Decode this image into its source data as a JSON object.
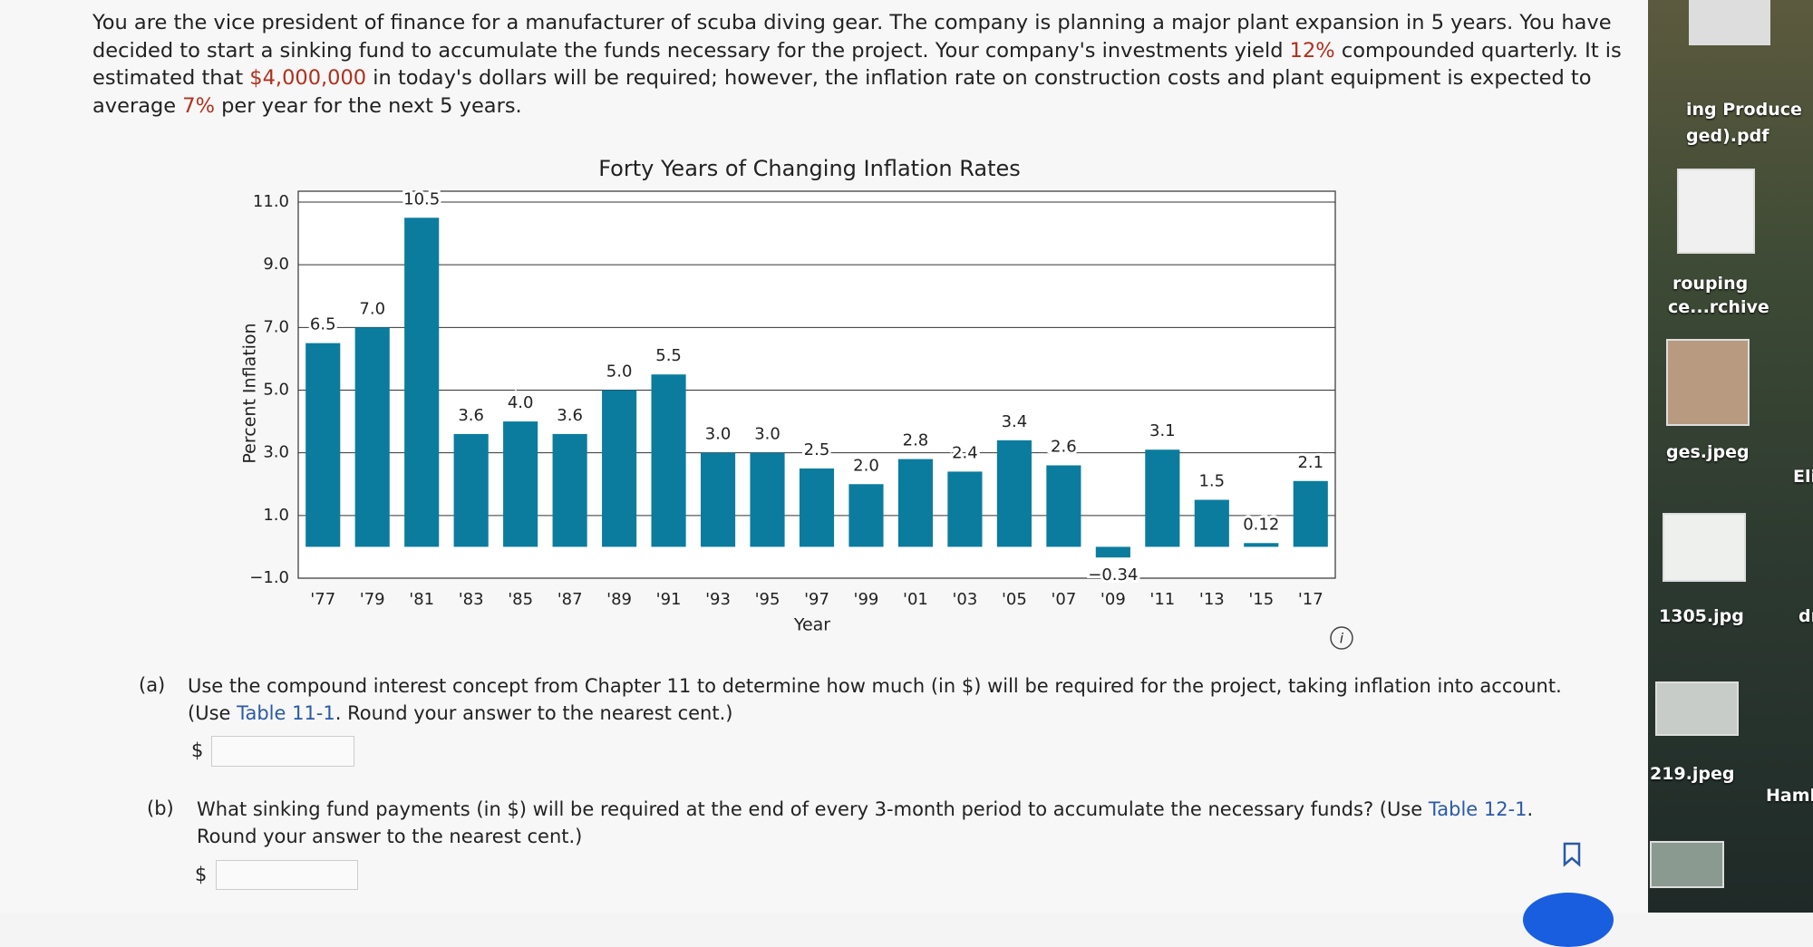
{
  "problem": {
    "intro": [
      "You are the vice president of finance for a manufacturer of scuba diving gear. The company is planning a major plant expansion in 5 years. You have",
      "decided to start a sinking fund to accumulate the funds necessary for the project. Your company's investments yield ",
      "12%",
      " compounded quarterly. It is",
      "estimated that ",
      "$4,000,000",
      " in today's dollars will be required; however, the inflation rate on construction costs and plant equipment is expected to",
      "average ",
      "7%",
      " per year for the next 5 years."
    ]
  },
  "chart_data": {
    "type": "bar",
    "title": "Forty Years of Changing Inflation Rates",
    "ylabel": "Percent Inflation",
    "xlabel": "Year",
    "categories": [
      "'77",
      "'79",
      "'81",
      "'83",
      "'85",
      "'87",
      "'89",
      "'91",
      "'93",
      "'95",
      "'97",
      "'99",
      "'01",
      "'03",
      "'05",
      "'07",
      "'09",
      "'11",
      "'13",
      "'15",
      "'17"
    ],
    "values": [
      6.5,
      7.0,
      10.5,
      3.6,
      4.0,
      3.6,
      5.0,
      5.5,
      3.0,
      3.0,
      2.5,
      2.0,
      2.8,
      2.4,
      3.4,
      2.6,
      -0.34,
      3.1,
      1.5,
      0.12,
      2.1
    ],
    "value_labels": [
      "6.5",
      "7.0",
      "10.5",
      "3.6",
      "4.0",
      "3.6",
      "5.0",
      "5.5",
      "3.0",
      "3.0",
      "2.5",
      "2.0",
      "2.8",
      "2.4",
      "3.4",
      "2.6",
      "−0.34",
      "3.1",
      "1.5",
      "0.12",
      "2.1"
    ],
    "color": "#0b7c9e",
    "ylim": [
      -1,
      11
    ],
    "yticks": [
      {
        "value": -1,
        "label": "−1.0"
      },
      {
        "value": 1,
        "label": "1.0"
      },
      {
        "value": 3,
        "label": "3.0"
      },
      {
        "value": 5,
        "label": "5.0"
      },
      {
        "value": 7,
        "label": "7.0"
      },
      {
        "value": 9,
        "label": "9.0"
      },
      {
        "value": 11,
        "label": "11.0"
      }
    ],
    "grid": true
  },
  "parts": [
    {
      "label": "(a)",
      "text": [
        "Use the compound interest concept from Chapter 11 to determine how much (in $) will be required for the project, taking inflation into account.",
        "(Use ",
        "Table 11-1",
        ". Round your answer to the nearest cent.)"
      ],
      "currency": "$"
    },
    {
      "label": "(b)",
      "text": [
        "What sinking fund payments (in $) will be required at the end of every 3-month period to accumulate the necessary funds? (Use ",
        "Table 12-1",
        ".",
        "Round your answer to the nearest cent.)"
      ],
      "currency": "$"
    }
  ],
  "desktop": {
    "files": [
      "ing Produce",
      "ged).pdf",
      "rouping",
      "ce...rchive",
      "ges.jpeg",
      "1305.jpg",
      "219.jpeg"
    ],
    "names": [
      "Eli",
      "dr",
      "Hamb"
    ]
  }
}
